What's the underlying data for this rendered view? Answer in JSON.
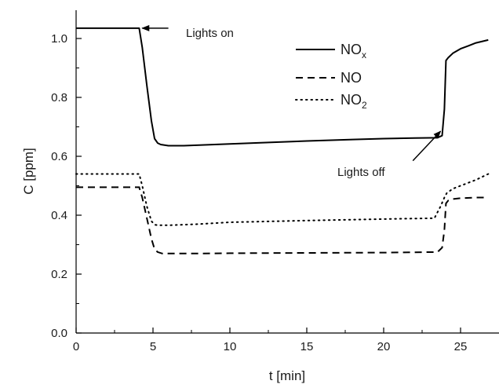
{
  "chart_data": {
    "type": "line",
    "title": "",
    "xlabel": "t [min]",
    "ylabel": "C [ppm]",
    "xlim": [
      0,
      26.8
    ],
    "ylim": [
      0,
      1.1
    ],
    "x_ticks": [
      0,
      5,
      10,
      15,
      20,
      25
    ],
    "y_ticks": [
      0.0,
      0.2,
      0.4,
      0.6,
      0.8,
      1.0
    ],
    "x_tick_labels": [
      "0",
      "5",
      "10",
      "15",
      "20",
      "25"
    ],
    "y_tick_labels": [
      "0.0",
      "0.2",
      "0.4",
      "0.6",
      "0.8",
      "1.0"
    ],
    "grid": false,
    "legend_position": "top-right",
    "series": [
      {
        "name": "NOx",
        "legend_main": "NO",
        "legend_sub": "x",
        "style": "solid",
        "color": "#000000",
        "x": [
          0,
          2,
          4.1,
          4.3,
          4.6,
          4.9,
          5.1,
          5.3,
          5.5,
          6,
          7,
          8,
          10,
          12,
          15,
          18,
          20,
          22,
          23.5,
          23.8,
          23.95,
          24.05,
          24.2,
          24.5,
          25,
          25.5,
          26,
          26.8
        ],
        "y": [
          1.035,
          1.035,
          1.035,
          0.97,
          0.84,
          0.72,
          0.66,
          0.645,
          0.64,
          0.636,
          0.636,
          0.638,
          0.642,
          0.646,
          0.652,
          0.657,
          0.66,
          0.662,
          0.663,
          0.67,
          0.76,
          0.925,
          0.935,
          0.95,
          0.965,
          0.975,
          0.985,
          0.995
        ]
      },
      {
        "name": "NO",
        "legend_main": "NO",
        "legend_sub": "",
        "style": "dashed",
        "color": "#000000",
        "x": [
          0,
          2,
          4.1,
          4.3,
          4.6,
          4.9,
          5.1,
          5.3,
          5.6,
          6,
          8,
          10,
          15,
          20,
          23.5,
          23.8,
          23.95,
          24.05,
          24.2,
          24.5,
          25,
          26,
          26.8
        ],
        "y": [
          0.495,
          0.495,
          0.495,
          0.46,
          0.39,
          0.32,
          0.285,
          0.275,
          0.27,
          0.27,
          0.27,
          0.271,
          0.272,
          0.273,
          0.275,
          0.29,
          0.35,
          0.44,
          0.45,
          0.455,
          0.458,
          0.46,
          0.46
        ]
      },
      {
        "name": "NO2",
        "legend_main": "NO",
        "legend_sub": "2",
        "style": "dotted",
        "color": "#000000",
        "x": [
          0,
          2,
          4.1,
          4.3,
          4.6,
          4.9,
          5.1,
          5.3,
          5.6,
          6,
          8,
          10,
          15,
          20,
          23.3,
          23.7,
          23.95,
          24.1,
          24.5,
          25,
          26,
          26.8
        ],
        "y": [
          0.54,
          0.54,
          0.54,
          0.5,
          0.43,
          0.38,
          0.368,
          0.366,
          0.366,
          0.366,
          0.37,
          0.376,
          0.382,
          0.387,
          0.39,
          0.43,
          0.46,
          0.475,
          0.49,
          0.5,
          0.52,
          0.54
        ]
      }
    ],
    "annotations": [
      {
        "text": "Lights on",
        "arrow_tail": [
          6.0,
          1.035
        ],
        "arrow_head": [
          4.3,
          1.035
        ]
      },
      {
        "text": "Lights off",
        "arrow_tail": [
          21.9,
          0.585
        ],
        "arrow_head": [
          23.7,
          0.685
        ]
      }
    ]
  }
}
